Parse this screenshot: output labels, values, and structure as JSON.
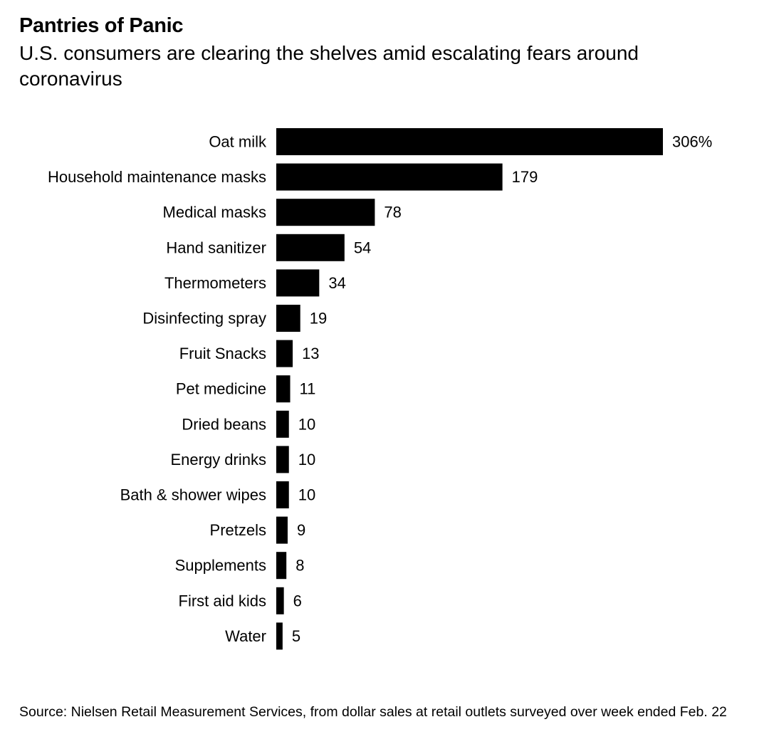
{
  "header": {
    "title": "Pantries of Panic",
    "subtitle": "U.S. consumers are clearing the shelves amid escalating fears around coronavirus"
  },
  "footer": {
    "source": "Source: Nielsen Retail Measurement Services, from dollar sales at retail outlets surveyed over week ended Feb. 22"
  },
  "colors": {
    "bar": "#000000",
    "text": "#000000",
    "background": "#ffffff"
  },
  "chart_data": {
    "type": "bar",
    "orientation": "horizontal",
    "title": "Pantries of Panic",
    "subtitle": "U.S. consumers are clearing the shelves amid escalating fears around coronavirus",
    "unit": "%",
    "categories": [
      "Oat milk",
      "Household maintenance masks",
      "Medical masks",
      "Hand sanitizer",
      "Thermometers",
      "Disinfecting spray",
      "Fruit Snacks",
      "Pet medicine",
      "Dried beans",
      "Energy drinks",
      "Bath & shower wipes",
      "Pretzels",
      "Supplements",
      "First aid kids",
      "Water"
    ],
    "values": [
      306,
      179,
      78,
      54,
      34,
      19,
      13,
      11,
      10,
      10,
      10,
      9,
      8,
      6,
      5
    ],
    "value_labels": [
      "306%",
      "179",
      "78",
      "54",
      "34",
      "19",
      "13",
      "11",
      "10",
      "10",
      "10",
      "9",
      "8",
      "6",
      "5"
    ],
    "xlim": [
      0,
      306
    ],
    "grid": false,
    "legend": "none"
  }
}
